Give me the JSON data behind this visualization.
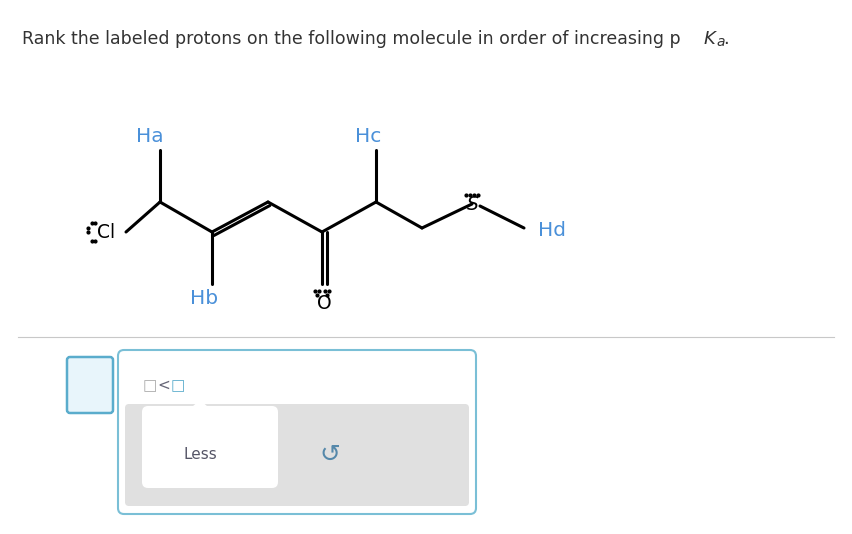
{
  "bg_color": "#ffffff",
  "molecule_color": "#000000",
  "label_color": "#4a90d9",
  "text_color": "#333333",
  "divider_color": "#c8c8c8",
  "box1_edge_color": "#5aaccc",
  "box1_face_color": "#e8f5fb",
  "box2_edge_color": "#7abfd6",
  "box2_face_color": "#ffffff",
  "sub_box_color": "#e0e0e0",
  "tab_face_color": "#ffffff",
  "less_color": "#555566",
  "reset_color": "#5588aa",
  "label_Ha": "Ha",
  "label_Hb": "Hb",
  "label_Hc": "Hc",
  "label_Hd": "Hd"
}
